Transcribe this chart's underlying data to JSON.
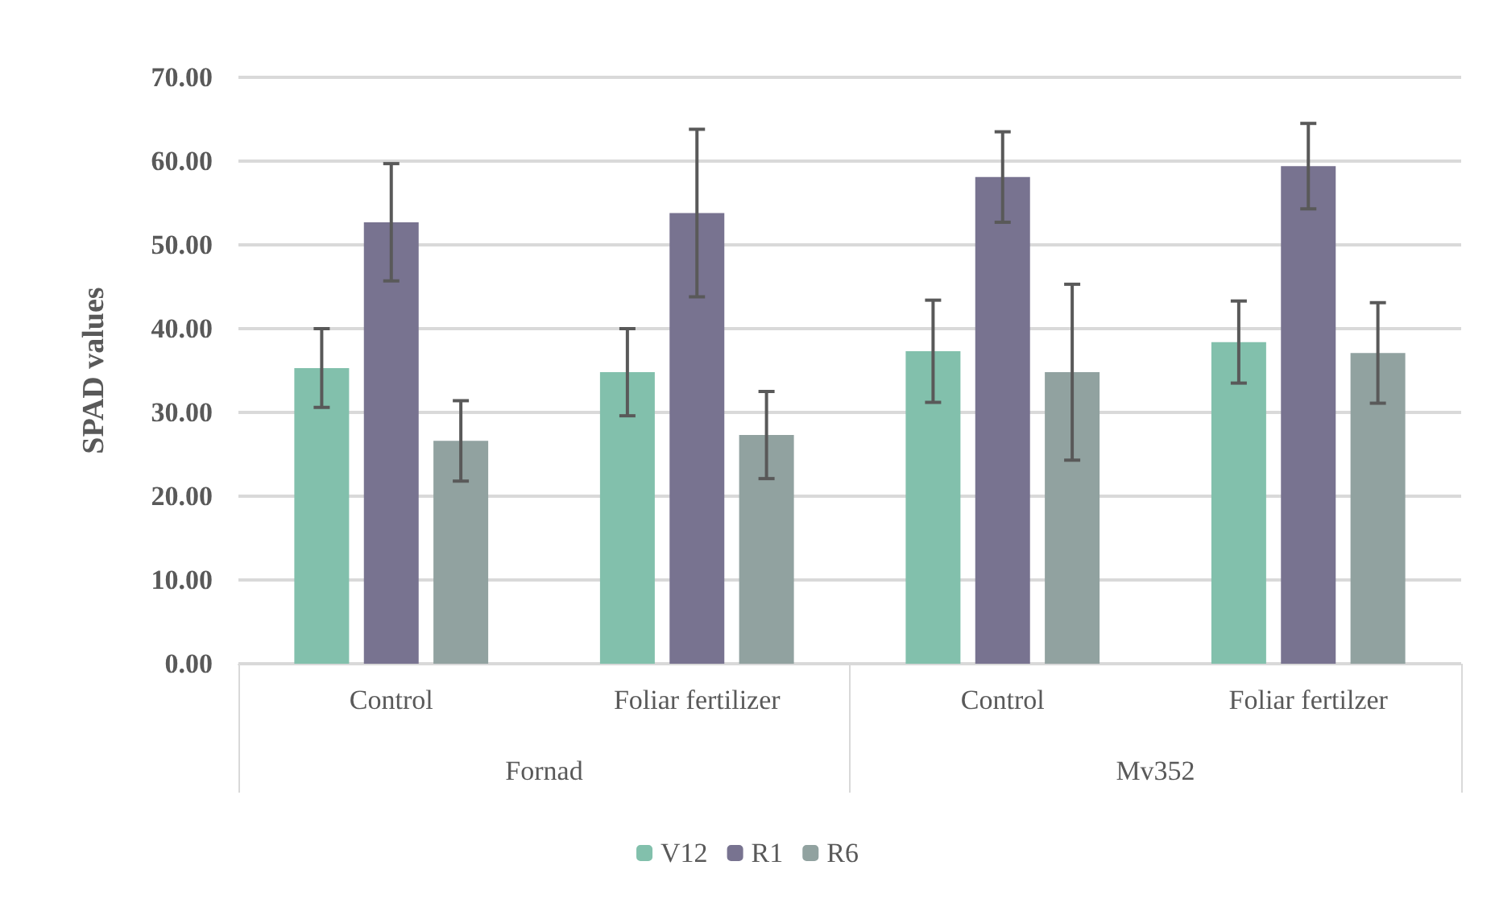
{
  "chart_data": {
    "type": "bar",
    "ylabel": "SPAD values",
    "categories": [
      "Control",
      "Foliar fertilizer",
      "Control",
      "Foliar fertilzer"
    ],
    "annotations": [
      "Fornad",
      "Mv352"
    ],
    "series": [
      {
        "name": "V12",
        "color": "#82c0ac",
        "values": [
          35.3,
          34.8,
          37.3,
          38.4
        ],
        "errors": [
          4.7,
          5.2,
          6.1,
          4.9
        ]
      },
      {
        "name": "R1",
        "color": "#787390",
        "values": [
          52.7,
          53.8,
          58.1,
          59.4
        ],
        "errors": [
          7.0,
          10.0,
          5.4,
          5.1
        ]
      },
      {
        "name": "R6",
        "color": "#91a2a0",
        "values": [
          26.6,
          27.3,
          34.8,
          37.1
        ],
        "errors": [
          4.8,
          5.2,
          10.5,
          6.0
        ]
      }
    ],
    "ylim": [
      0,
      70
    ],
    "yticks": [
      {
        "value": 0,
        "label": "0.00"
      },
      {
        "value": 10,
        "label": "10.00"
      },
      {
        "value": 20,
        "label": "20.00"
      },
      {
        "value": 30,
        "label": "30.00"
      },
      {
        "value": 40,
        "label": "40.00"
      },
      {
        "value": 50,
        "label": "50.00"
      },
      {
        "value": 60,
        "label": "60.00"
      },
      {
        "value": 70,
        "label": "70.00"
      }
    ],
    "grid": "y",
    "legend": "bottom"
  }
}
